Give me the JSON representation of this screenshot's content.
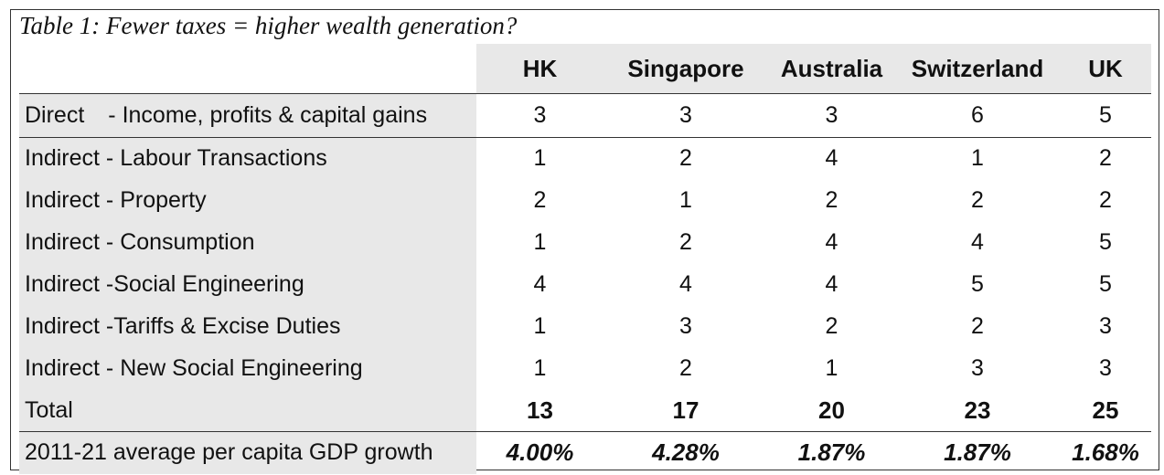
{
  "caption": "Table 1: Fewer taxes = higher wealth generation?",
  "columns": [
    "HK",
    "Singapore",
    "Australia",
    "Switzerland",
    "UK"
  ],
  "direct_row": {
    "label_prefix": "Direct",
    "label_suffix": "- Income, profits & capital gains",
    "values": [
      "3",
      "3",
      "3",
      "6",
      "5"
    ]
  },
  "indirect_rows": [
    {
      "label": "Indirect - Labour Transactions",
      "values": [
        "1",
        "2",
        "4",
        "1",
        "2"
      ]
    },
    {
      "label": "Indirect - Property",
      "values": [
        "2",
        "1",
        "2",
        "2",
        "2"
      ]
    },
    {
      "label": "Indirect - Consumption",
      "values": [
        "1",
        "2",
        "4",
        "4",
        "5"
      ]
    },
    {
      "label": "Indirect -Social Engineering",
      "values": [
        "4",
        "4",
        "4",
        "5",
        "5"
      ]
    },
    {
      "label": "Indirect -Tariffs & Excise Duties",
      "values": [
        "1",
        "3",
        "2",
        "2",
        "3"
      ]
    },
    {
      "label": "Indirect - New Social Engineering",
      "values": [
        "1",
        "2",
        "1",
        "3",
        "3"
      ]
    }
  ],
  "total_row": {
    "label": "Total",
    "values": [
      "13",
      "17",
      "20",
      "23",
      "25"
    ]
  },
  "growth_row": {
    "label": "2011-21 average per capita GDP growth",
    "values": [
      "4.00%",
      "4.28%",
      "1.87%",
      "1.87%",
      "1.68%"
    ]
  },
  "colors": {
    "label_shading": "#e8e8e8",
    "border": "#333333",
    "text": "#111111"
  }
}
